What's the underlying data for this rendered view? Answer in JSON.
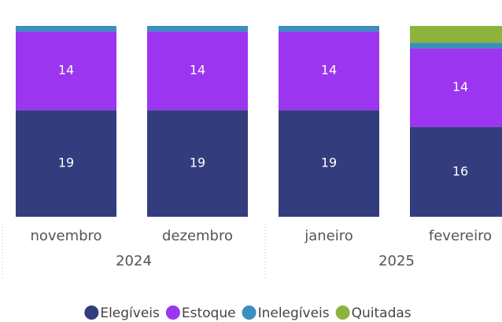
{
  "chart_data": {
    "type": "stacked_bar",
    "categories": [
      "novembro",
      "dezembro",
      "janeiro",
      "fevereiro"
    ],
    "groups": [
      {
        "label": "2024",
        "count": 2
      },
      {
        "label": "2025",
        "count": 2
      }
    ],
    "series": [
      {
        "name": "Elegíveis",
        "color": "#333d7e",
        "values": [
          19,
          19,
          19,
          16
        ],
        "data_labels": true
      },
      {
        "name": "Estoque",
        "color": "#9b35ef",
        "values": [
          14,
          14,
          14,
          14
        ],
        "data_labels": true
      },
      {
        "name": "Inelegíveis",
        "color": "#3a8fbf",
        "values": [
          1,
          1,
          1,
          1
        ],
        "data_labels": false
      },
      {
        "name": "Quitadas",
        "color": "#8db33d",
        "values": [
          null,
          null,
          null,
          3
        ],
        "data_labels": false
      }
    ],
    "ylim": [
      0,
      34
    ],
    "legend": "bottom"
  }
}
